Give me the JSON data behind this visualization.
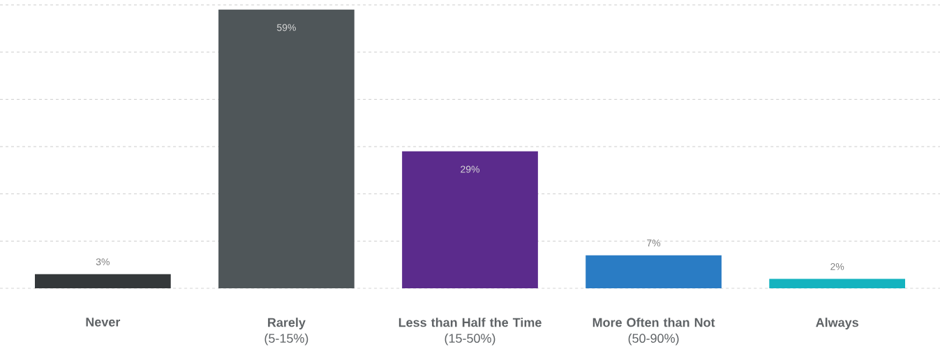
{
  "chart_data": {
    "type": "bar",
    "categories": [
      "**Never**",
      "**Rarely**\n(5-15%)",
      "**Less than Half the Time**\n(15-50%)",
      "**More Often than Not**\n(50-90%)",
      "**Always**"
    ],
    "values": [
      3,
      59,
      29,
      7,
      2
    ],
    "colors": [
      "#34383a",
      "#4f5659",
      "#5b2b8c",
      "#2a7cc4",
      "#14b3bf"
    ],
    "value_labels": [
      "3%",
      "59%",
      "29%",
      "7%",
      "2%"
    ],
    "ylim": [
      0,
      60
    ],
    "yticks": [
      {
        "value": 0,
        "label": null
      },
      {
        "value": 10,
        "label": null
      },
      {
        "value": 20,
        "label": null
      },
      {
        "value": 30,
        "label": null
      },
      {
        "value": 40,
        "label": null
      },
      {
        "value": 50,
        "label": null
      },
      {
        "value": 60,
        "label": null
      }
    ],
    "tick_labels": "x",
    "grid": "y"
  }
}
